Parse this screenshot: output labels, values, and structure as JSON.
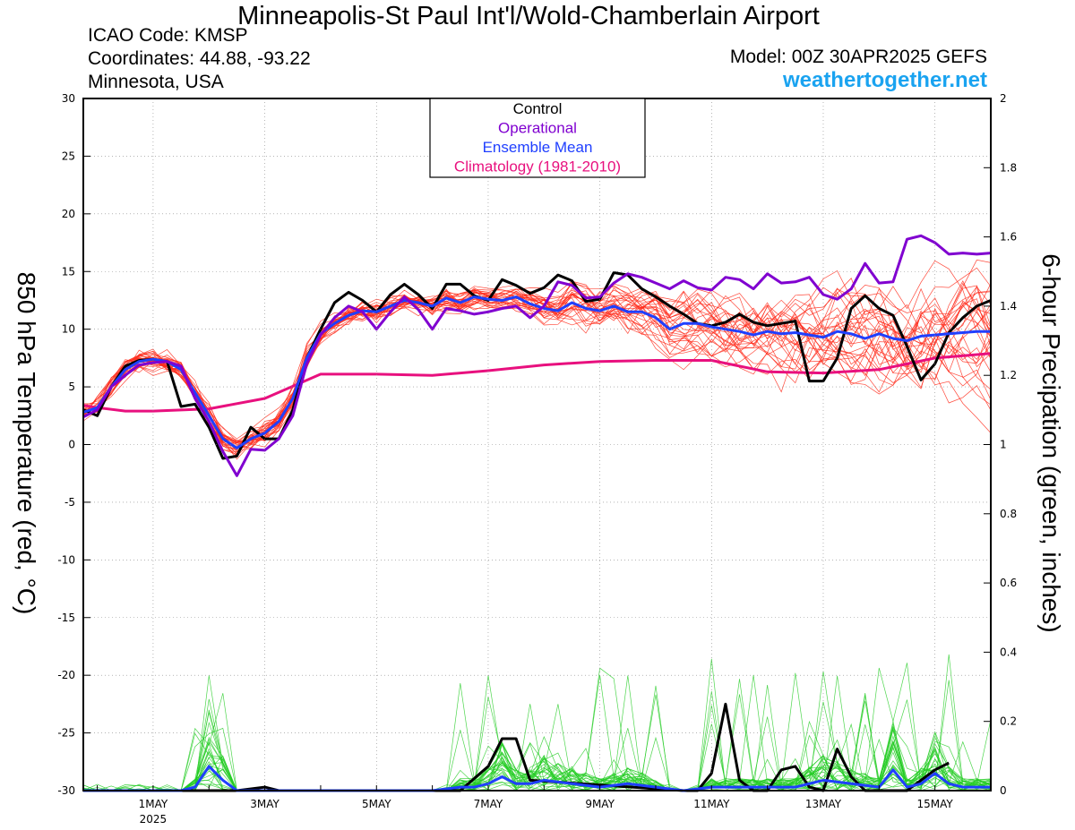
{
  "header": {
    "title": "Minneapolis-St Paul Int'l/Wold-Chamberlain Airport",
    "icao": "ICAO Code: KMSP",
    "coordinates": "Coordinates: 44.88, -93.22",
    "state": "Minnesota, USA",
    "model": "Model: 00Z 30APR2025 GEFS",
    "site": "weathertogether.net"
  },
  "colors": {
    "control": "#000000",
    "operational": "#8000d0",
    "ensemble_mean": "#1f3fff",
    "climatology": "#e8107e",
    "temp_members": "#ff2a1a",
    "precip_members": "#22cc22",
    "site": "#1aa3f0"
  },
  "chart_data": {
    "type": "line",
    "title": "Minneapolis-St Paul Int'l/Wold-Chamberlain Airport",
    "ylabel": "850 hPa Temperature (red, °C)",
    "y2label": "6-hour Precipation (green, inches)",
    "ylim": [
      -30,
      30
    ],
    "y2lim": [
      0,
      2
    ],
    "yticks": [
      30,
      25,
      20,
      15,
      10,
      5,
      0,
      -5,
      -10,
      -15,
      -20,
      -25,
      -30
    ],
    "y2ticks": [
      2,
      1.8,
      1.6,
      1.4,
      1.2,
      1,
      0.8,
      0.6,
      0.4,
      0.2,
      0
    ],
    "x_range_days": [
      29.75,
      46.0
    ],
    "x_tick_labels": [
      {
        "day": 31,
        "label": "1MAY",
        "sub": "2025"
      },
      {
        "day": 33,
        "label": "3MAY"
      },
      {
        "day": 35,
        "label": "5MAY"
      },
      {
        "day": 37,
        "label": "7MAY"
      },
      {
        "day": 39,
        "label": "9MAY"
      },
      {
        "day": 41,
        "label": "11MAY"
      },
      {
        "day": 43,
        "label": "13MAY"
      },
      {
        "day": 45,
        "label": "15MAY"
      }
    ],
    "grid": true,
    "legend": [
      "Control",
      "Operational",
      "Ensemble Mean",
      "Climatology (1981-2010)"
    ],
    "series": [
      {
        "name": "Control",
        "axis": "temp",
        "x": [
          29.75,
          30.0,
          30.25,
          30.5,
          30.75,
          31.0,
          31.25,
          31.5,
          31.75,
          32.0,
          32.25,
          32.5,
          32.75,
          33.0,
          33.25,
          33.5,
          33.75,
          34.0,
          34.25,
          34.5,
          34.75,
          35.0,
          35.25,
          35.5,
          35.75,
          36.0,
          36.25,
          36.5,
          36.75,
          37.0,
          37.25,
          37.5,
          37.75,
          38.0,
          38.25,
          38.5,
          38.75,
          39.0,
          39.25,
          39.5,
          39.75,
          40.0,
          40.25,
          40.5,
          40.75,
          41.0,
          41.25,
          41.5,
          41.75,
          42.0,
          42.25,
          42.5,
          42.75,
          43.0,
          43.25,
          43.5,
          43.75,
          44.0,
          44.25,
          44.5,
          44.75,
          45.0,
          45.25,
          45.5,
          45.75,
          46.0
        ],
        "y": [
          3.0,
          2.5,
          5.0,
          6.8,
          7.3,
          7.4,
          7.2,
          3.3,
          3.5,
          1.5,
          -1.2,
          -1.0,
          1.5,
          0.5,
          0.5,
          3.0,
          7.5,
          10.0,
          12.3,
          13.2,
          12.5,
          11.5,
          13.0,
          13.9,
          13.0,
          11.8,
          13.9,
          13.9,
          12.9,
          12.5,
          14.3,
          13.8,
          13.1,
          13.6,
          14.7,
          14.2,
          12.4,
          12.6,
          14.9,
          14.7,
          13.5,
          12.8,
          12.0,
          11.3,
          10.5,
          10.3,
          10.6,
          11.3,
          10.6,
          10.3,
          10.5,
          10.7,
          5.5,
          5.5,
          7.5,
          11.8,
          12.9,
          11.8,
          11.2,
          8.5,
          5.6,
          7.0,
          9.7,
          11.0,
          12.0,
          12.5
        ]
      },
      {
        "name": "Operational",
        "axis": "temp",
        "x": [
          29.75,
          30.0,
          30.25,
          30.5,
          30.75,
          31.0,
          31.25,
          31.5,
          31.75,
          32.0,
          32.25,
          32.5,
          32.75,
          33.0,
          33.25,
          33.5,
          33.75,
          34.0,
          34.25,
          34.5,
          34.75,
          35.0,
          35.25,
          35.5,
          35.75,
          36.0,
          36.25,
          36.5,
          36.75,
          37.0,
          37.25,
          37.5,
          37.75,
          38.0,
          38.25,
          38.5,
          38.75,
          39.0,
          39.25,
          39.5,
          39.75,
          40.0,
          40.25,
          40.5,
          40.75,
          41.0,
          41.25,
          41.5,
          41.75,
          42.0,
          42.25,
          42.5,
          42.75,
          43.0,
          43.25,
          43.5,
          43.75,
          44.0,
          44.25,
          44.5,
          44.75,
          45.0,
          45.25,
          45.5,
          45.75,
          46.0
        ],
        "y": [
          2.4,
          3.0,
          5.0,
          6.0,
          6.9,
          7.1,
          7.2,
          6.8,
          4.0,
          2.0,
          -0.6,
          -2.7,
          -0.4,
          -0.5,
          0.5,
          2.5,
          7.0,
          9.5,
          11.0,
          12.0,
          11.5,
          10.0,
          11.5,
          12.8,
          11.7,
          10.0,
          11.8,
          11.6,
          11.3,
          11.5,
          11.8,
          12.0,
          11.0,
          12.0,
          14.1,
          13.8,
          12.7,
          12.8,
          14.0,
          14.8,
          14.5,
          14.0,
          13.5,
          14.2,
          13.6,
          13.4,
          14.5,
          14.3,
          13.5,
          14.8,
          14.0,
          14.1,
          14.5,
          13.0,
          12.6,
          13.5,
          15.7,
          14.0,
          14.1,
          17.8,
          18.1,
          17.5,
          16.5,
          16.6,
          16.5,
          16.6
        ]
      },
      {
        "name": "Ensemble Mean",
        "axis": "temp",
        "x": [
          29.75,
          30.0,
          30.25,
          30.5,
          30.75,
          31.0,
          31.25,
          31.5,
          31.75,
          32.0,
          32.25,
          32.5,
          32.75,
          33.0,
          33.25,
          33.5,
          33.75,
          34.0,
          34.25,
          34.5,
          34.75,
          35.0,
          35.25,
          35.5,
          35.75,
          36.0,
          36.25,
          36.5,
          36.75,
          37.0,
          37.25,
          37.5,
          37.75,
          38.0,
          38.25,
          38.5,
          38.75,
          39.0,
          39.25,
          39.5,
          39.75,
          40.0,
          40.25,
          40.5,
          40.75,
          41.0,
          41.25,
          41.5,
          41.75,
          42.0,
          42.25,
          42.5,
          42.75,
          43.0,
          43.25,
          43.5,
          43.75,
          44.0,
          44.25,
          44.5,
          44.75,
          45.0,
          45.25,
          45.5,
          45.75,
          46.0
        ],
        "y": [
          2.8,
          3.2,
          5.0,
          6.5,
          7.2,
          7.4,
          7.2,
          6.5,
          4.5,
          2.5,
          0.5,
          -0.3,
          0.5,
          1.0,
          2.0,
          4.0,
          7.5,
          9.6,
          10.5,
          11.2,
          11.6,
          11.5,
          12.0,
          12.5,
          12.3,
          12.0,
          12.7,
          12.3,
          12.8,
          12.6,
          12.5,
          12.8,
          12.2,
          11.8,
          11.6,
          12.3,
          11.8,
          11.6,
          12.0,
          11.5,
          11.5,
          11.0,
          10.0,
          10.5,
          10.5,
          10.2,
          10.0,
          9.8,
          9.5,
          9.8,
          9.6,
          9.7,
          9.5,
          9.3,
          9.8,
          9.6,
          9.2,
          9.6,
          9.2,
          9.0,
          9.4,
          9.5,
          9.6,
          9.7,
          9.8,
          9.8
        ]
      },
      {
        "name": "Climatology (1981-2010)",
        "axis": "temp",
        "x": [
          29.75,
          30.0,
          30.5,
          31.0,
          32.0,
          33.0,
          34.0,
          35.0,
          36.0,
          37.0,
          38.0,
          39.0,
          40.0,
          41.0,
          42.0,
          43.0,
          44.0,
          45.0,
          46.0
        ],
        "y": [
          3.4,
          3.2,
          2.9,
          2.9,
          3.1,
          4.0,
          6.1,
          6.1,
          6.0,
          6.4,
          6.9,
          7.2,
          7.3,
          7.3,
          6.3,
          6.2,
          6.5,
          7.5,
          7.9
        ]
      },
      {
        "name": "Control",
        "axis": "precip",
        "x": [
          29.75,
          30.25,
          30.5,
          30.75,
          31.0,
          31.25,
          31.5,
          31.75,
          32.0,
          32.25,
          32.5,
          33.0,
          33.25,
          33.5,
          36.5,
          37.0,
          37.25,
          37.5,
          37.75,
          40.5,
          40.75,
          41.0,
          41.25,
          41.5,
          41.75,
          42.0,
          42.25,
          42.5,
          42.75,
          43.0,
          43.25,
          43.5,
          43.75,
          44.0,
          44.25,
          44.5,
          44.75,
          45.0,
          45.25
        ],
        "y": [
          0,
          0,
          0,
          0,
          0,
          0,
          0,
          0,
          0,
          0,
          0,
          0.01,
          0.0,
          0,
          0,
          0.07,
          0.15,
          0.15,
          0.03,
          0,
          0,
          0.05,
          0.25,
          0.03,
          0,
          0,
          0.06,
          0.07,
          0.01,
          0,
          0.12,
          0.04,
          0.0,
          0,
          0,
          0,
          0.03,
          0.06,
          0.08
        ]
      },
      {
        "name": "Ensemble Mean",
        "axis": "precip",
        "x": [
          29.75,
          31.0,
          31.5,
          31.75,
          32.0,
          32.25,
          32.5,
          33.0,
          34.0,
          35.0,
          36.0,
          36.5,
          36.75,
          37.0,
          37.25,
          37.5,
          37.75,
          38.0,
          38.5,
          39.0,
          39.5,
          40.0,
          40.5,
          41.0,
          41.5,
          42.0,
          42.5,
          43.0,
          43.5,
          44.0,
          44.25,
          44.5,
          44.75,
          45.0,
          45.25,
          45.5,
          45.75,
          46.0
        ],
        "y": [
          0,
          0,
          0,
          0.01,
          0.07,
          0.03,
          0,
          0,
          0,
          0,
          0,
          0.01,
          0.01,
          0.02,
          0.04,
          0.02,
          0.02,
          0.03,
          0.02,
          0.01,
          0.02,
          0.01,
          0,
          0.01,
          0.01,
          0.01,
          0.01,
          0.03,
          0.02,
          0.01,
          0.06,
          0.01,
          0.02,
          0.05,
          0.02,
          0.01,
          0.01,
          0.01
        ]
      }
    ],
    "members": {
      "temp_count": 30,
      "precip_count": 30
    }
  }
}
